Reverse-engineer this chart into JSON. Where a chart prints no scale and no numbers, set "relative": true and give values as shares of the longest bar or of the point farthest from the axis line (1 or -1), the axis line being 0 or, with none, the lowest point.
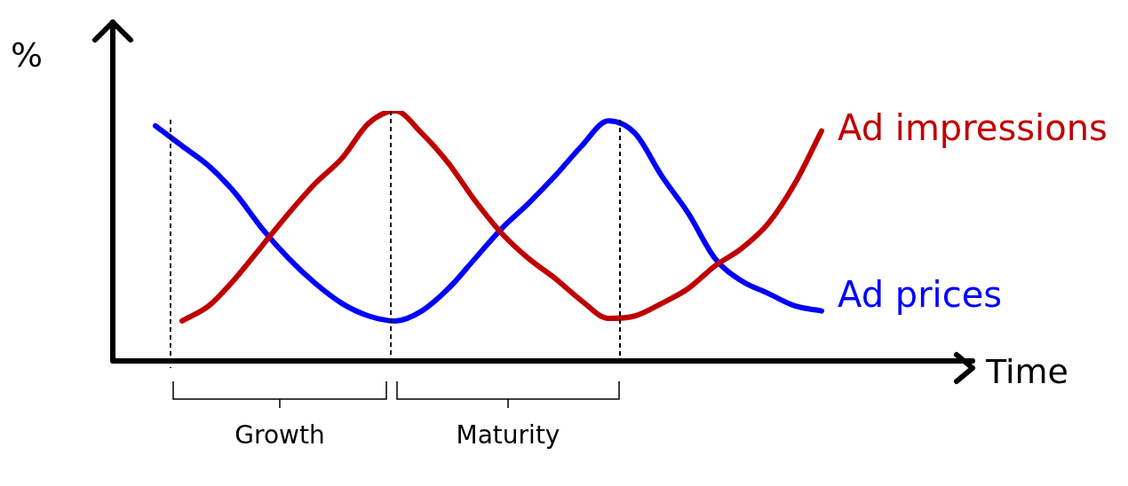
{
  "chart_data": {
    "type": "line",
    "relative": true,
    "xlabel": "Time",
    "ylabel": "%",
    "legend": false,
    "grid": false,
    "tick_labels": false,
    "categories": [
      null,
      null,
      null,
      null,
      null,
      null,
      null,
      null,
      null,
      null,
      null,
      null,
      null,
      null,
      null,
      null,
      null,
      null,
      null,
      null,
      null,
      null,
      null,
      null,
      null,
      null
    ],
    "series": [
      {
        "name": "Ad impressions",
        "color": "#c00000",
        "values": [
          null,
          0.16,
          0.22,
          0.33,
          0.46,
          0.59,
          0.71,
          0.81,
          0.95,
          1,
          0.91,
          0.79,
          0.64,
          0.51,
          0.41,
          0.33,
          0.24,
          0.17,
          0.18,
          0.23,
          0.29,
          0.38,
          0.45,
          0.55,
          0.71,
          0.92
        ]
      },
      {
        "name": "Ad prices",
        "color": "#0000ff",
        "values": [
          0.94,
          0.86,
          0.78,
          0.67,
          0.53,
          0.41,
          0.31,
          0.23,
          0.18,
          0.16,
          0.2,
          0.29,
          0.41,
          0.53,
          0.63,
          0.74,
          0.86,
          0.96,
          0.91,
          0.74,
          0.59,
          0.41,
          0.32,
          0.27,
          0.22,
          0.2
        ]
      }
    ],
    "annotations": [
      "Growth",
      "Maturity"
    ]
  }
}
